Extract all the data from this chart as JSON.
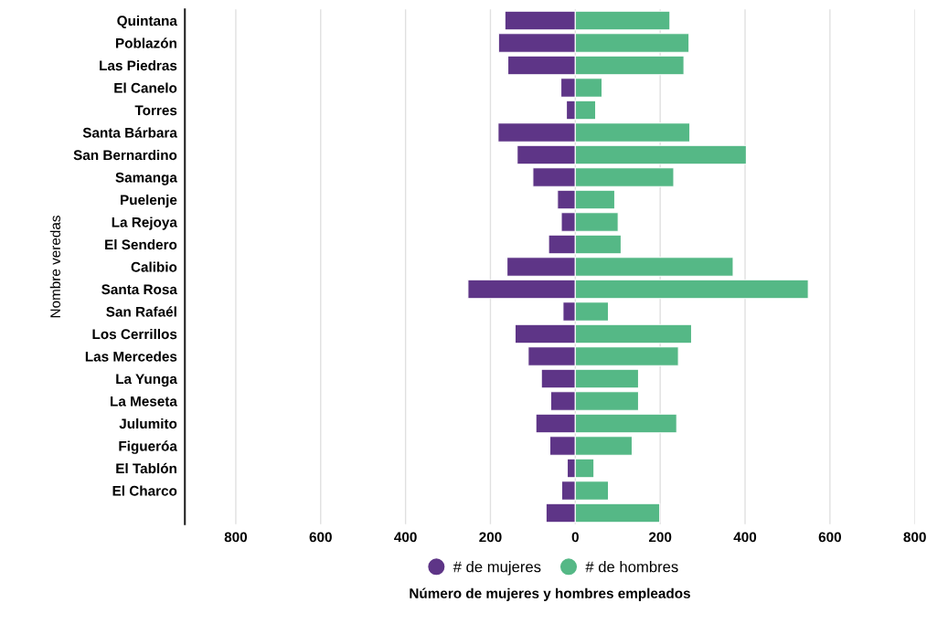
{
  "chart_data": {
    "type": "bar",
    "orientation": "horizontal",
    "stacked": true,
    "xlabel": "Número de mujeres y hombres empleados",
    "ylabel": "Nombre veredas",
    "categories": [
      "Quintana",
      "Poblazón",
      "Las Piedras",
      "El Canelo",
      "Torres",
      "Santa Bárbara",
      "San Bernardino",
      "Samanga",
      "Puelenje",
      "La Rejoya",
      "El Sendero",
      "Calibio",
      "Santa Rosa",
      "San Rafaél",
      "Los Cerrillos",
      "Las Mercedes",
      "La Yunga",
      "La Meseta",
      "Julumito",
      "Figueróa",
      "El Tablón",
      "El Charco",
      null
    ],
    "series": [
      {
        "name": "# de mujeres",
        "color": "#5e3587",
        "values": [
          -166,
          -181,
          -159,
          -34,
          -21,
          -182,
          -137,
          -100,
          -42,
          -33,
          -63,
          -161,
          -253,
          -29,
          -142,
          -111,
          -80,
          -58,
          -93,
          -60,
          -19,
          -32,
          -69
        ]
      },
      {
        "name": "# de hombres",
        "color": "#55b886",
        "values": [
          223,
          268,
          256,
          63,
          48,
          270,
          403,
          232,
          93,
          101,
          108,
          372,
          549,
          78,
          274,
          243,
          149,
          149,
          239,
          134,
          44,
          78,
          199
        ]
      }
    ],
    "xlim": [
      -920,
      800
    ],
    "xticks": [
      {
        "value": -800,
        "label": "800"
      },
      {
        "value": -600,
        "label": "600"
      },
      {
        "value": -400,
        "label": "400"
      },
      {
        "value": -200,
        "label": "200"
      },
      0,
      200,
      400,
      600,
      800
    ],
    "grid": "x",
    "legend": "bottom"
  }
}
